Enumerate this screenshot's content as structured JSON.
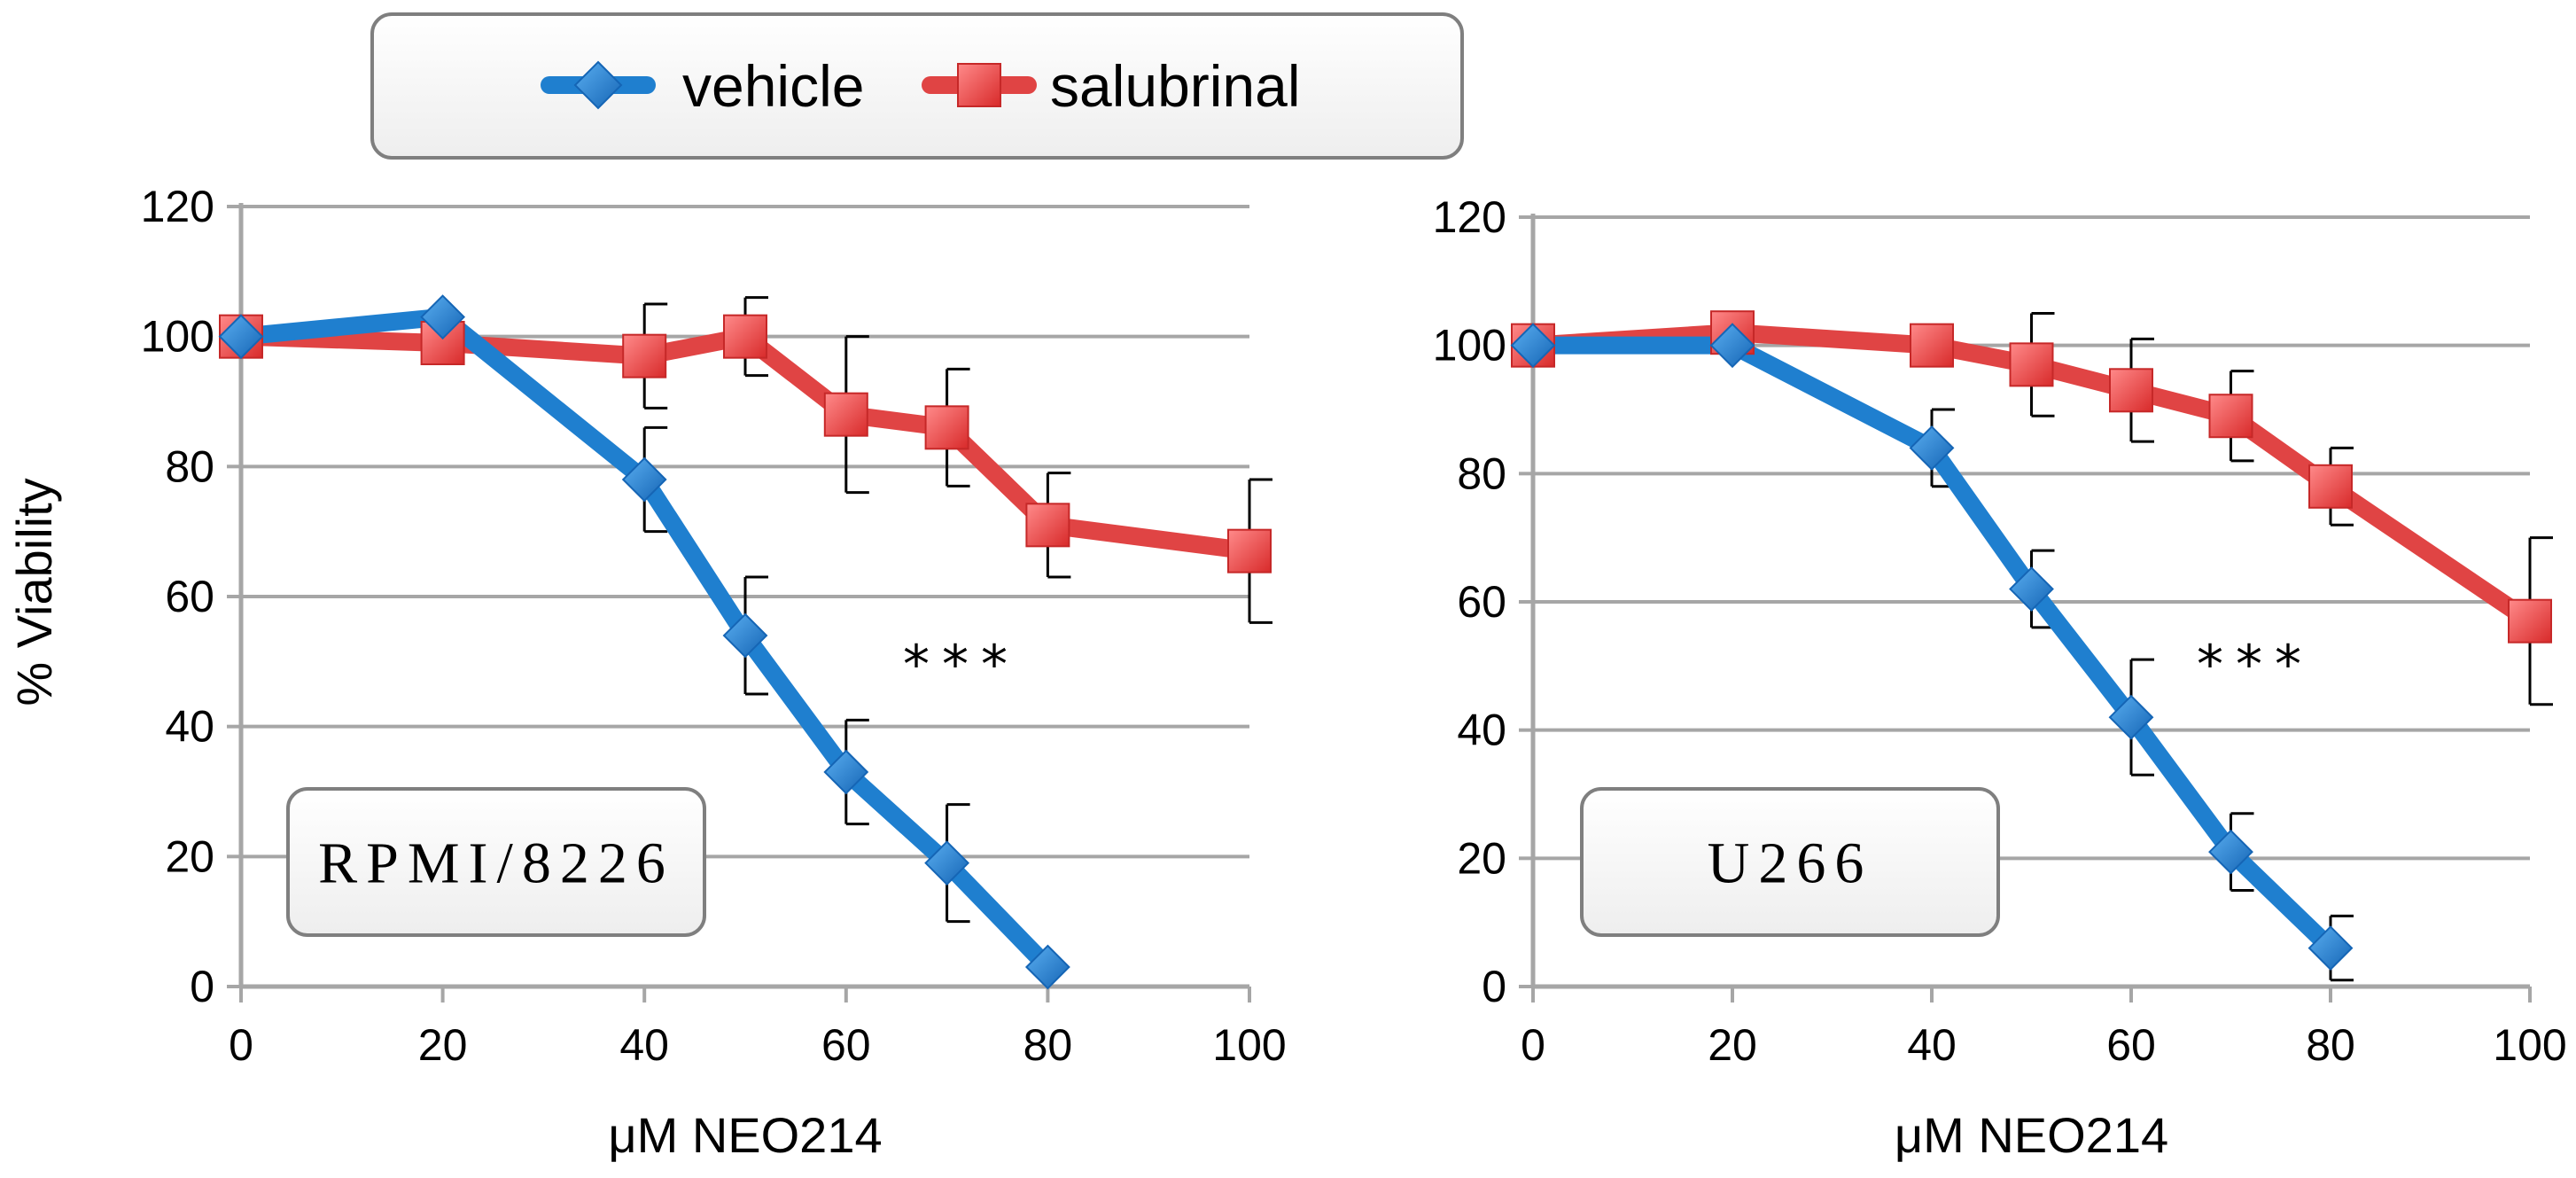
{
  "legend": {
    "entries": [
      {
        "label": "vehicle",
        "color": "#1f7fcf",
        "marker": "diamond"
      },
      {
        "label": "salubrinal",
        "color": "#e04444",
        "marker": "square"
      }
    ]
  },
  "y_axis_title": "% Viability",
  "chart_data": [
    {
      "type": "line",
      "title": "",
      "cell_line_label": "RPMI/8226",
      "significance": "***",
      "xlabel": "μM NEO214",
      "ylabel": "% Viability",
      "xlim": [
        0,
        100
      ],
      "ylim": [
        0,
        120
      ],
      "x_ticks": [
        "0",
        "20",
        "40",
        "60",
        "80",
        "100"
      ],
      "y_ticks": [
        "0",
        "20",
        "40",
        "60",
        "80",
        "100",
        "120"
      ],
      "grid": true,
      "series": [
        {
          "name": "vehicle",
          "color": "#1f7fcf",
          "x": [
            0,
            20,
            40,
            50,
            60,
            70,
            80
          ],
          "y": [
            100,
            103,
            78,
            54,
            33,
            19,
            3
          ],
          "error": [
            null,
            null,
            8,
            9,
            8,
            9,
            null
          ]
        },
        {
          "name": "salubrinal",
          "color": "#e04444",
          "x": [
            0,
            20,
            40,
            50,
            60,
            70,
            80,
            100
          ],
          "y": [
            100,
            99,
            97,
            100,
            88,
            86,
            71,
            67
          ],
          "error": [
            null,
            null,
            8,
            6,
            12,
            9,
            8,
            11
          ]
        }
      ]
    },
    {
      "type": "line",
      "title": "",
      "cell_line_label": "U266",
      "significance": "***",
      "xlabel": "μM NEO214",
      "ylabel": "",
      "xlim": [
        0,
        100
      ],
      "ylim": [
        0,
        120
      ],
      "x_ticks": [
        "0",
        "20",
        "40",
        "60",
        "80",
        "100"
      ],
      "y_ticks": [
        "0",
        "20",
        "40",
        "60",
        "80",
        "100",
        "120"
      ],
      "grid": true,
      "series": [
        {
          "name": "vehicle",
          "color": "#1f7fcf",
          "x": [
            0,
            20,
            40,
            50,
            60,
            70,
            80
          ],
          "y": [
            100,
            100,
            84,
            62,
            42,
            21,
            6
          ],
          "error": [
            null,
            null,
            6,
            6,
            9,
            6,
            5
          ]
        },
        {
          "name": "salubrinal",
          "color": "#e04444",
          "x": [
            0,
            20,
            40,
            50,
            60,
            70,
            80,
            100
          ],
          "y": [
            100,
            102,
            100,
            97,
            93,
            89,
            78,
            57
          ],
          "error": [
            null,
            null,
            null,
            8,
            8,
            7,
            6,
            13
          ]
        }
      ]
    }
  ]
}
